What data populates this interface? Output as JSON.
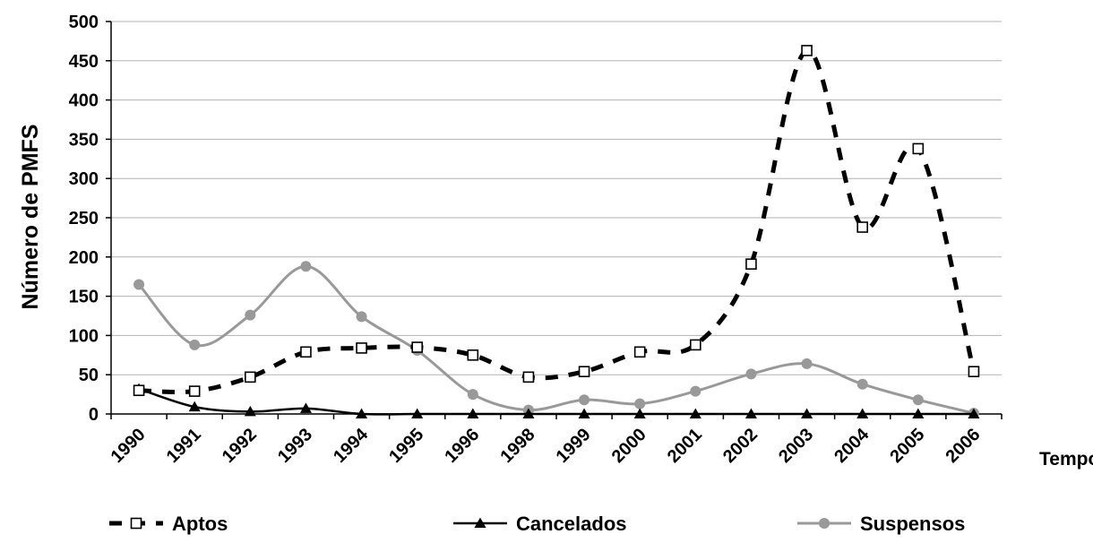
{
  "chart_data": {
    "type": "line",
    "title": "",
    "xlabel": "Tempo",
    "ylabel": "Número de PMFS",
    "categories": [
      "1990",
      "1991",
      "1992",
      "1993",
      "1994",
      "1995",
      "1996",
      "1998",
      "1999",
      "2000",
      "2001",
      "2002",
      "2003",
      "2004",
      "2005",
      "2006"
    ],
    "ylim": [
      0,
      500
    ],
    "yticks": [
      "0",
      "50",
      "100",
      "150",
      "200",
      "250",
      "300",
      "350",
      "400",
      "450",
      "500"
    ],
    "grid": true,
    "legend_placement": "bottom",
    "series": [
      {
        "name": "Aptos",
        "style": "dashed",
        "marker": "open-square",
        "color": "#000000",
        "values": [
          30,
          29,
          47,
          79,
          84,
          85,
          75,
          47,
          54,
          79,
          88,
          191,
          463,
          238,
          338,
          54
        ]
      },
      {
        "name": "Cancelados",
        "style": "solid",
        "marker": "filled-triangle",
        "color": "#000000",
        "values": [
          32,
          9,
          3,
          7,
          0,
          0,
          0,
          0,
          0,
          0,
          0,
          0,
          0,
          0,
          0,
          0
        ]
      },
      {
        "name": "Suspensos",
        "style": "solid",
        "marker": "filled-circle",
        "color": "#999999",
        "values": [
          165,
          88,
          126,
          188,
          124,
          81,
          25,
          5,
          18,
          13,
          29,
          51,
          64,
          38,
          18,
          1
        ]
      }
    ]
  }
}
